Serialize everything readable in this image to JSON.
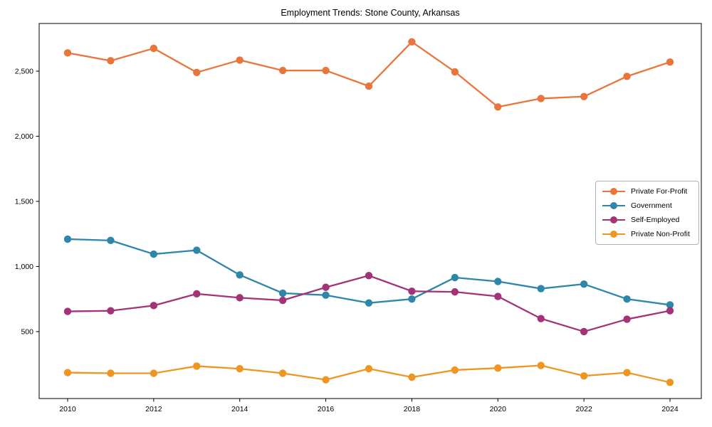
{
  "chart_data": {
    "type": "line",
    "title": "Employment Trends: Stone County, Arkansas",
    "xlabel": "",
    "ylabel": "",
    "grid": false,
    "legend_position": "right",
    "xlim": [
      2009.3,
      2024.7
    ],
    "ylim": [
      -14,
      2866
    ],
    "xticks": [
      2010,
      2012,
      2014,
      2016,
      2018,
      2020,
      2022,
      2024
    ],
    "xtick_labels": [
      "2010",
      "2012",
      "2014",
      "2016",
      "2018",
      "2020",
      "2022",
      "2024"
    ],
    "yticks": [
      500,
      1000,
      1500,
      2000,
      2500
    ],
    "ytick_labels": [
      "500",
      "1,000",
      "1,500",
      "2,000",
      "2,500"
    ],
    "x": [
      2010,
      2011,
      2012,
      2013,
      2014,
      2015,
      2016,
      2017,
      2018,
      2019,
      2020,
      2021,
      2022,
      2023,
      2024
    ],
    "series": [
      {
        "name": "Private For-Profit",
        "color": "#e8763c",
        "values": [
          2640,
          2580,
          2675,
          2490,
          2585,
          2505,
          2505,
          2385,
          2725,
          2495,
          2225,
          2290,
          2305,
          2460,
          2570
        ]
      },
      {
        "name": "Government",
        "color": "#2e86a8",
        "values": [
          1210,
          1200,
          1095,
          1125,
          935,
          795,
          780,
          720,
          750,
          915,
          885,
          830,
          865,
          750,
          705
        ]
      },
      {
        "name": "Self-Employed",
        "color": "#a23377",
        "values": [
          655,
          660,
          700,
          790,
          760,
          740,
          840,
          930,
          810,
          805,
          770,
          600,
          500,
          595,
          660
        ]
      },
      {
        "name": "Private Non-Profit",
        "color": "#ee9522",
        "values": [
          185,
          180,
          180,
          235,
          215,
          180,
          130,
          215,
          150,
          205,
          220,
          240,
          160,
          185,
          110
        ]
      }
    ]
  }
}
